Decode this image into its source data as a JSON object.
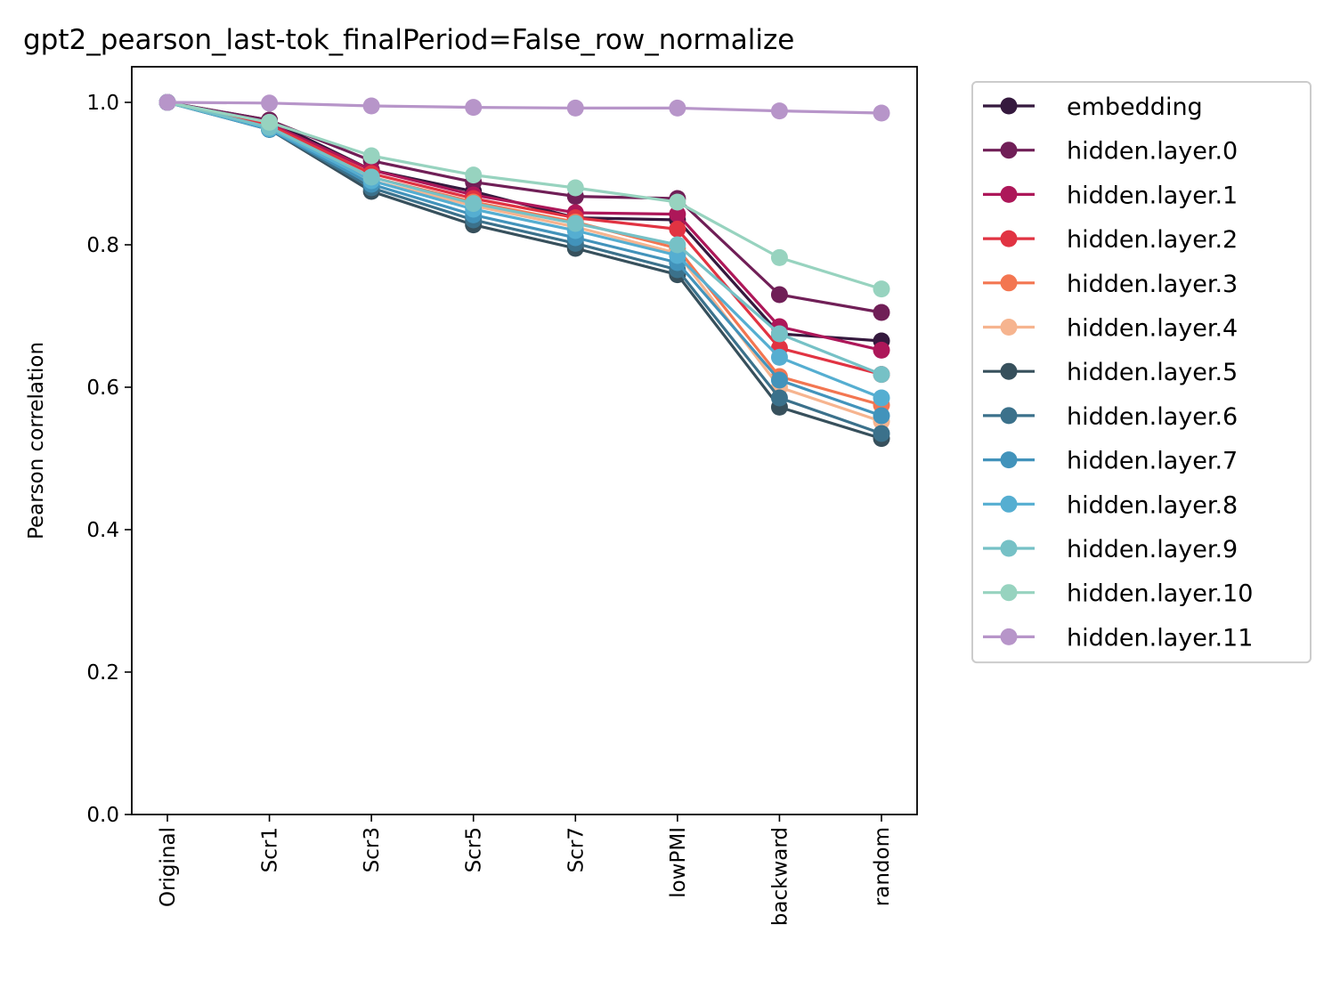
{
  "chart_data": {
    "type": "line",
    "title": "gpt2_pearson_last-tok_finalPeriod=False_row_normalize",
    "xlabel": "",
    "ylabel": "Pearson correlation",
    "ylim": [
      0,
      1.05
    ],
    "yticks": [
      "0.0",
      "0.2",
      "0.4",
      "0.6",
      "0.8",
      "1.0"
    ],
    "ytick_values": [
      0,
      0.2,
      0.4,
      0.6,
      0.8,
      1.0
    ],
    "categories": [
      "Original",
      "Scr1",
      "Scr3",
      "Scr5",
      "Scr7",
      "lowPMI",
      "backward",
      "random"
    ],
    "grid": false,
    "legend_position": "outside-right",
    "series": [
      {
        "name": "embedding",
        "color": "#35193e",
        "values": [
          1.0,
          0.975,
          0.905,
          0.875,
          0.838,
          0.835,
          0.675,
          0.665
        ]
      },
      {
        "name": "hidden.layer.0",
        "color": "#701f57",
        "values": [
          1.0,
          0.975,
          0.918,
          0.888,
          0.868,
          0.865,
          0.73,
          0.705
        ]
      },
      {
        "name": "hidden.layer.1",
        "color": "#ad1759",
        "values": [
          1.0,
          0.97,
          0.905,
          0.87,
          0.845,
          0.843,
          0.685,
          0.652
        ]
      },
      {
        "name": "hidden.layer.2",
        "color": "#e13342",
        "values": [
          1.0,
          0.968,
          0.9,
          0.865,
          0.838,
          0.822,
          0.655,
          0.618
        ]
      },
      {
        "name": "hidden.layer.3",
        "color": "#f37651",
        "values": [
          1.0,
          0.965,
          0.895,
          0.86,
          0.832,
          0.795,
          0.615,
          0.575
        ]
      },
      {
        "name": "hidden.layer.4",
        "color": "#f6b48f",
        "values": [
          1.0,
          0.963,
          0.89,
          0.855,
          0.825,
          0.788,
          0.6,
          0.552
        ]
      },
      {
        "name": "hidden.layer.5",
        "color": "#37505c",
        "values": [
          1.0,
          0.962,
          0.875,
          0.828,
          0.795,
          0.758,
          0.572,
          0.528
        ]
      },
      {
        "name": "hidden.layer.6",
        "color": "#3b718b",
        "values": [
          1.0,
          0.962,
          0.88,
          0.835,
          0.802,
          0.765,
          0.585,
          0.535
        ]
      },
      {
        "name": "hidden.layer.7",
        "color": "#4293bb",
        "values": [
          1.0,
          0.962,
          0.885,
          0.842,
          0.81,
          0.775,
          0.61,
          0.56
        ]
      },
      {
        "name": "hidden.layer.8",
        "color": "#55aed1",
        "values": [
          1.0,
          0.963,
          0.89,
          0.85,
          0.82,
          0.785,
          0.642,
          0.585
        ]
      },
      {
        "name": "hidden.layer.9",
        "color": "#76c1c6",
        "values": [
          1.0,
          0.965,
          0.895,
          0.858,
          0.83,
          0.8,
          0.675,
          0.618
        ]
      },
      {
        "name": "hidden.layer.10",
        "color": "#97d3bf",
        "values": [
          1.0,
          0.972,
          0.925,
          0.898,
          0.88,
          0.86,
          0.782,
          0.738
        ]
      },
      {
        "name": "hidden.layer.11",
        "color": "#b795c9",
        "values": [
          1.0,
          0.999,
          0.995,
          0.993,
          0.992,
          0.992,
          0.988,
          0.985
        ]
      }
    ]
  }
}
